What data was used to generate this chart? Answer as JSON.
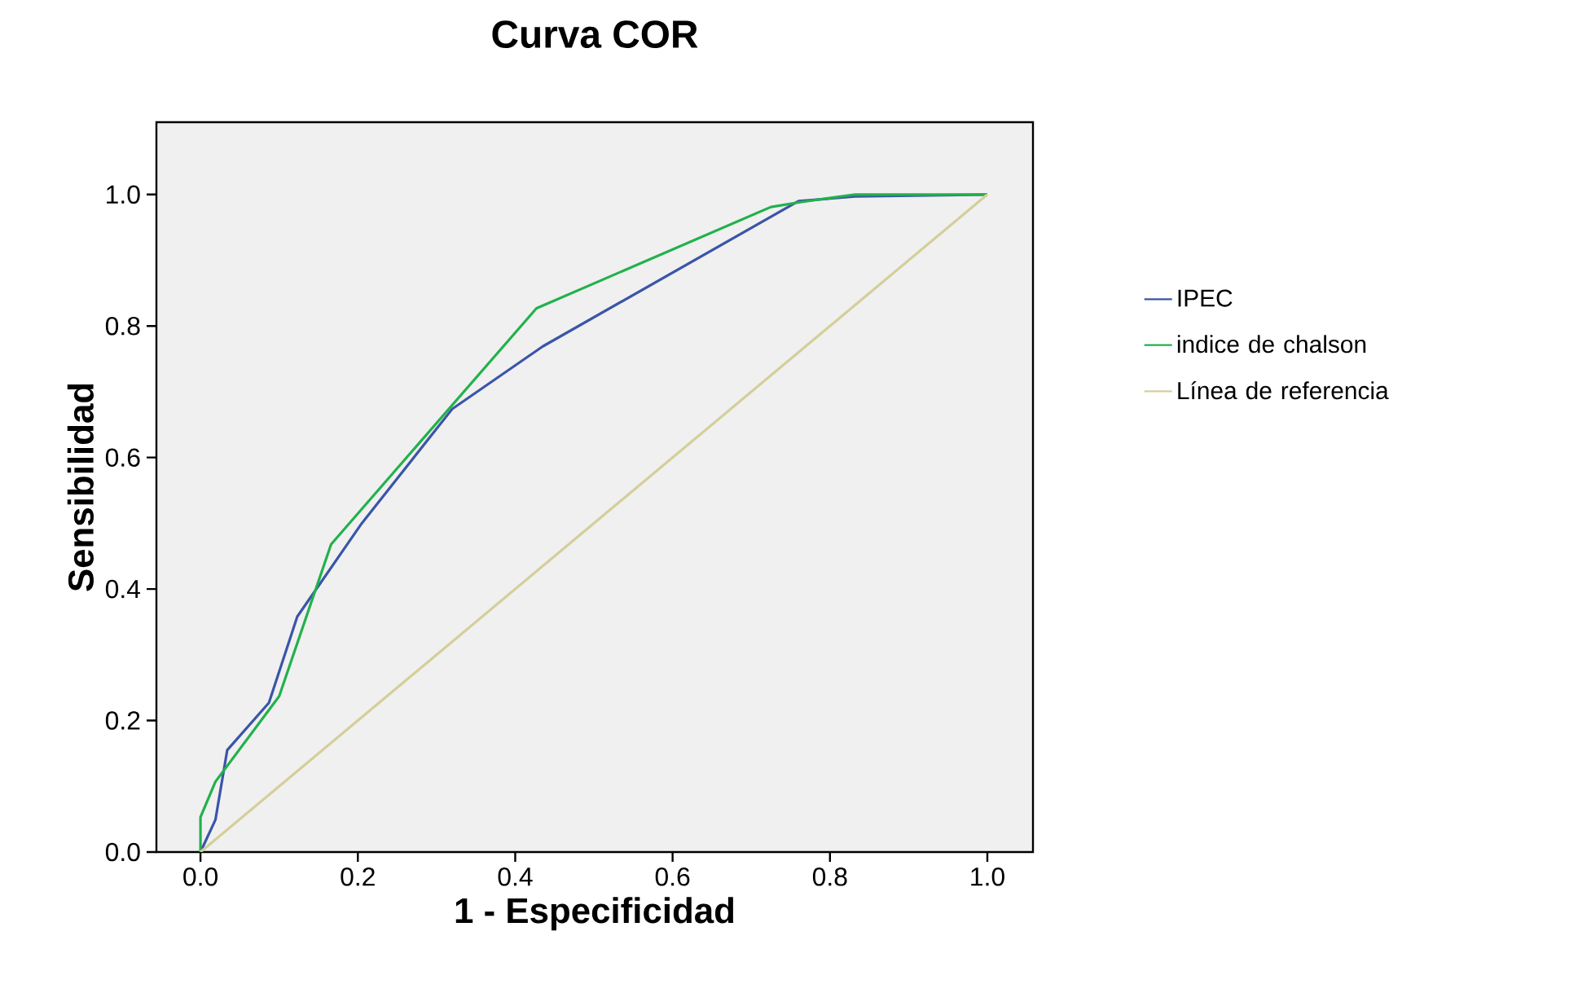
{
  "chart_data": {
    "type": "line",
    "title": "Curva COR",
    "xlabel": "1 - Especificidad",
    "ylabel": "Sensibilidad",
    "xlim": [
      -0.056,
      1.058
    ],
    "ylim": [
      0,
      1.11
    ],
    "xticks": [
      {
        "value": 0,
        "label": "0.0"
      },
      {
        "value": 0.2,
        "label": "0.2"
      },
      {
        "value": 0.4,
        "label": "0.4"
      },
      {
        "value": 0.6,
        "label": "0.6"
      },
      {
        "value": 0.8,
        "label": "0.8"
      },
      {
        "value": 1,
        "label": "1.0"
      }
    ],
    "yticks": [
      {
        "value": 0,
        "label": "0.0"
      },
      {
        "value": 0.2,
        "label": "0.2"
      },
      {
        "value": 0.4,
        "label": "0.4"
      },
      {
        "value": 0.6,
        "label": "0.6"
      },
      {
        "value": 0.8,
        "label": "0.8"
      },
      {
        "value": 1,
        "label": "1.0"
      }
    ],
    "grid": false,
    "legend": "right",
    "marker": "none",
    "line_style": "solid",
    "series": [
      {
        "name": "IPEC",
        "color": "#3a55a8",
        "x": [
          0,
          0.019,
          0.034,
          0.087,
          0.123,
          0.205,
          0.32,
          0.435,
          0.76,
          0.832,
          1
        ],
        "values": [
          0,
          0.049,
          0.155,
          0.227,
          0.358,
          0.5,
          0.674,
          0.769,
          0.99,
          0.997,
          1
        ]
      },
      {
        "name": "indice de chalson",
        "color": "#22b14c",
        "x": [
          0,
          0,
          0.019,
          0.1,
          0.166,
          0.427,
          0.725,
          0.76,
          0.832,
          1
        ],
        "values": [
          0,
          0.053,
          0.107,
          0.237,
          0.468,
          0.827,
          0.981,
          0.988,
          1,
          1
        ]
      },
      {
        "name": "Línea de referencia",
        "color": "#d4cf9a",
        "x": [
          0,
          1
        ],
        "values": [
          0,
          1
        ]
      }
    ]
  }
}
